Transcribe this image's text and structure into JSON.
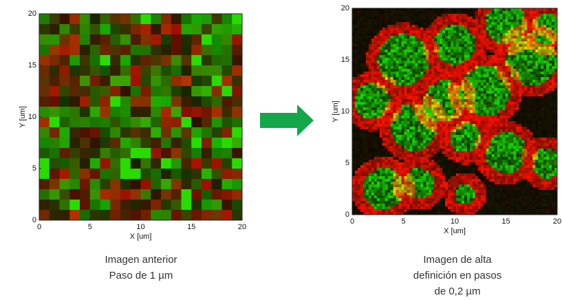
{
  "chart_data": [
    {
      "type": "image",
      "xlabel": "X [um]",
      "ylabel": "Y [um]",
      "xlim": [
        0,
        20
      ],
      "ylim": [
        0,
        20
      ],
      "xticks": [
        0,
        5,
        10,
        15,
        20
      ],
      "yticks": [
        0,
        5,
        10,
        15,
        20
      ],
      "caption": [
        "Imagen anterior",
        "Paso de 1 µm"
      ],
      "pixels": 20
    },
    {
      "type": "image",
      "xlabel": "X [um]",
      "ylabel": "Y [um]",
      "xlim": [
        0,
        20
      ],
      "ylim": [
        0,
        20
      ],
      "xticks": [
        0,
        5,
        10,
        15,
        20
      ],
      "yticks": [
        0,
        5,
        10,
        15,
        20
      ],
      "caption": [
        "Imagen de alta",
        "definición en pasos",
        "de 0,2 µm"
      ],
      "pixels": 100
    }
  ]
}
